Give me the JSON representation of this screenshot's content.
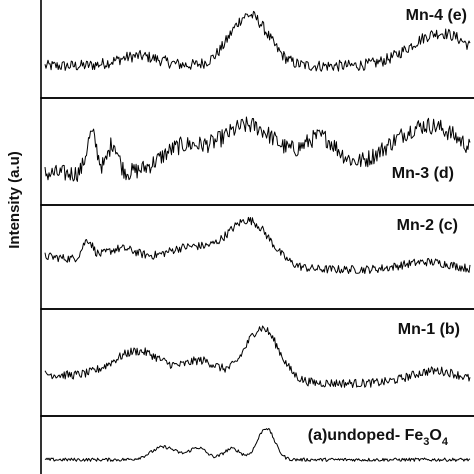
{
  "chart_data": {
    "type": "line",
    "ylabel": "Intensity (a.u)",
    "xlabel": "",
    "title": "",
    "grid": false,
    "panels": [
      {
        "label": "Mn-4",
        "tag": "(e)",
        "label_position": "top-right",
        "noise": 0.07,
        "baseline": 0.22,
        "peaks": [
          {
            "center": 0.22,
            "height": 0.12,
            "width": 0.05
          },
          {
            "center": 0.48,
            "height": 0.62,
            "width": 0.045
          },
          {
            "center": 0.93,
            "height": 0.4,
            "width": 0.07
          }
        ]
      },
      {
        "label": "Mn-3",
        "tag": "(d)",
        "label_position": "bottom-right",
        "noise": 0.1,
        "baseline": 0.2,
        "peaks": [
          {
            "center": 0.11,
            "height": 0.45,
            "width": 0.012
          },
          {
            "center": 0.16,
            "height": 0.35,
            "width": 0.012
          },
          {
            "center": 0.32,
            "height": 0.28,
            "width": 0.05
          },
          {
            "center": 0.48,
            "height": 0.55,
            "width": 0.07
          },
          {
            "center": 0.65,
            "height": 0.38,
            "width": 0.04
          },
          {
            "center": 0.9,
            "height": 0.55,
            "width": 0.09
          }
        ]
      },
      {
        "label": "Mn-2",
        "tag": "(c)",
        "label_position": "top-right",
        "noise": 0.05,
        "baseline": 0.28,
        "peaks": [
          {
            "center": 0.1,
            "height": 0.22,
            "width": 0.012
          },
          {
            "center": 0.18,
            "height": 0.16,
            "width": 0.04
          },
          {
            "center": 0.34,
            "height": 0.22,
            "width": 0.06
          },
          {
            "center": 0.48,
            "height": 0.55,
            "width": 0.05
          },
          {
            "center": 0.9,
            "height": 0.1,
            "width": 0.06
          }
        ],
        "decay": 0.18
      },
      {
        "label": "Mn-1",
        "tag": "(b)",
        "label_position": "top-right",
        "noise": 0.05,
        "baseline": 0.2,
        "peaks": [
          {
            "center": 0.22,
            "height": 0.32,
            "width": 0.06
          },
          {
            "center": 0.37,
            "height": 0.22,
            "width": 0.04
          },
          {
            "center": 0.51,
            "height": 0.62,
            "width": 0.04
          },
          {
            "center": 0.92,
            "height": 0.15,
            "width": 0.06
          }
        ],
        "decay": 0.12
      },
      {
        "label": "(a)undoped- Fe",
        "formula_sub1": "3",
        "formula_mid": "O",
        "formula_sub2": "4",
        "label_position": "top-right",
        "noise": 0.04,
        "baseline": 0.15,
        "peaks": [
          {
            "center": 0.28,
            "height": 0.3,
            "width": 0.03
          },
          {
            "center": 0.36,
            "height": 0.28,
            "width": 0.02
          },
          {
            "center": 0.44,
            "height": 0.26,
            "width": 0.02
          },
          {
            "center": 0.52,
            "height": 0.75,
            "width": 0.02
          }
        ]
      }
    ]
  }
}
